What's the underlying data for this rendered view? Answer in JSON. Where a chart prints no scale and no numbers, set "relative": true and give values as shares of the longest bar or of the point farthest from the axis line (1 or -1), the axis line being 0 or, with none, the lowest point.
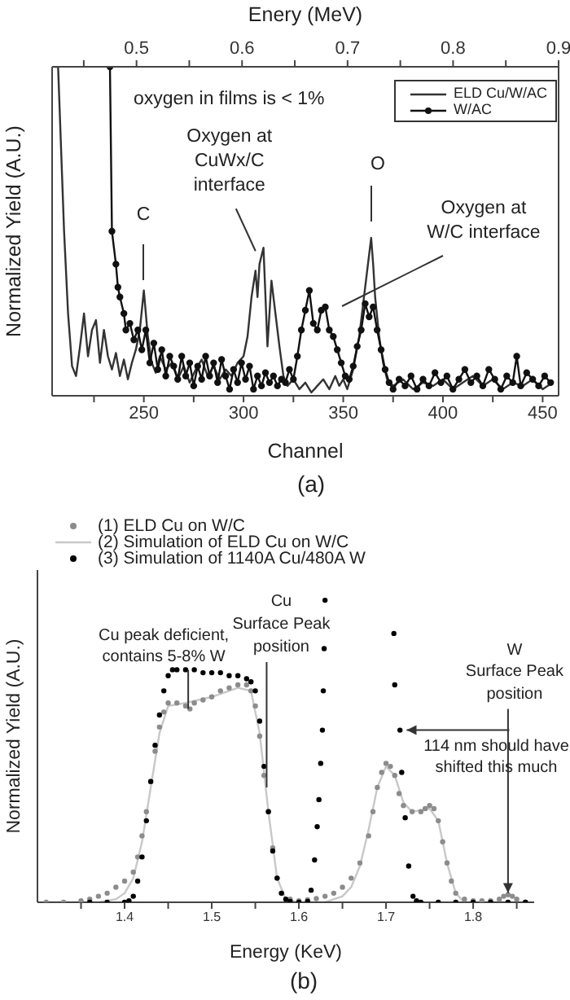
{
  "chart_data": [
    {
      "type": "line",
      "title": "(a)",
      "xlabel": "Channel",
      "ylabel": "Normalized Yield (A.U.)",
      "x2label": "Enery (MeV)",
      "relative": true,
      "xlim": [
        204,
        458
      ],
      "xticks": [
        {
          "value": 225,
          "label": null
        },
        250,
        {
          "value": 275,
          "label": null
        },
        300,
        {
          "value": 325,
          "label": null
        },
        350,
        {
          "value": 375,
          "label": null
        },
        400,
        {
          "value": 425,
          "label": null
        },
        450
      ],
      "x2lim": [
        0.42,
        0.9
      ],
      "x2ticks": [
        {
          "value": 0.45,
          "label": null
        },
        0.5,
        {
          "value": 0.55,
          "label": null
        },
        0.6,
        {
          "value": 0.65,
          "label": null
        },
        0.7,
        {
          "value": 0.75,
          "label": null
        },
        0.8,
        {
          "value": 0.85,
          "label": null
        },
        0.9
      ],
      "legend": "top right",
      "annotations": [
        "oxygen in films is < 1%",
        "C",
        {
          "text": "Oxygen at CuWx/C interface",
          "x": 306,
          "y": 0.44
        },
        "O",
        "Oxygen at W/C interface"
      ],
      "series": [
        {
          "name": "ELD Cu/W/AC",
          "color": "#333333",
          "marker": "none",
          "x": [
            205,
            207,
            210,
            212,
            214,
            216,
            218,
            220,
            222,
            224,
            226,
            228,
            230,
            232,
            234,
            236,
            238,
            240,
            242,
            244,
            246,
            248,
            250,
            252,
            254,
            256,
            258,
            261,
            264,
            267,
            270,
            273,
            276,
            279,
            282,
            285,
            288,
            291,
            294,
            297,
            300,
            302,
            304,
            306,
            307,
            308,
            310,
            311,
            312,
            314,
            316,
            318,
            320,
            322,
            325,
            328,
            331,
            334,
            337,
            340,
            343,
            346,
            348,
            350,
            352,
            355,
            358,
            360,
            362,
            364,
            365,
            366,
            368,
            370,
            372,
            375,
            380,
            385,
            390,
            395,
            400,
            405,
            410,
            415,
            420,
            425,
            430,
            435,
            440,
            445,
            450,
            455
          ],
          "values": [
            1,
            1,
            0.5,
            0.25,
            0.09,
            0.06,
            0.15,
            0.25,
            0.12,
            0.2,
            0.23,
            0.1,
            0.2,
            0.12,
            0.08,
            0.13,
            0.06,
            0.11,
            0.05,
            0.1,
            0.14,
            0.2,
            0.32,
            0.18,
            0.1,
            0.07,
            0.12,
            0.08,
            0.1,
            0.05,
            0.09,
            0.04,
            0.08,
            0.11,
            0.06,
            0.09,
            0.05,
            0.08,
            0.06,
            0.1,
            0.12,
            0.18,
            0.3,
            0.38,
            0.3,
            0.4,
            0.45,
            0.3,
            0.15,
            0.35,
            0.25,
            0.15,
            0.06,
            0.03,
            0.05,
            0.02,
            0.04,
            0.01,
            0.03,
            0.05,
            0.02,
            0.06,
            0.03,
            0.05,
            0.02,
            0.08,
            0.18,
            0.28,
            0.38,
            0.48,
            0.4,
            0.3,
            0.18,
            0.1,
            0.05,
            0.03,
            0.05,
            0.02,
            0.04,
            0.03,
            0.05,
            0.02,
            0.04,
            0.06,
            0.03,
            0.05,
            0.02,
            0.04,
            0.03,
            0.05,
            0.02,
            0.04
          ]
        },
        {
          "name": "W/AC",
          "color": "#111111",
          "marker": "circle",
          "x": [
            233,
            234,
            236,
            237,
            238,
            240,
            241,
            243,
            245,
            247,
            249,
            251,
            253,
            255,
            257,
            259,
            261,
            263,
            265,
            267,
            269,
            271,
            273,
            275,
            277,
            279,
            281,
            283,
            285,
            287,
            289,
            291,
            293,
            295,
            297,
            299,
            301,
            303,
            305,
            307,
            309,
            311,
            313,
            315,
            317,
            319,
            321,
            323,
            325,
            327,
            329,
            331,
            333,
            335,
            337,
            339,
            341,
            343,
            345,
            347,
            349,
            351,
            353,
            355,
            357,
            359,
            361,
            363,
            365,
            367,
            369,
            371,
            373,
            375,
            378,
            381,
            384,
            387,
            390,
            393,
            396,
            399,
            402,
            405,
            408,
            411,
            414,
            417,
            420,
            423,
            426,
            429,
            432,
            435,
            437,
            439,
            442,
            445,
            448,
            451,
            454
          ],
          "values": [
            1,
            0.5,
            0.4,
            0.33,
            0.3,
            0.25,
            0.2,
            0.22,
            0.17,
            0.2,
            0.14,
            0.2,
            0.1,
            0.16,
            0.08,
            0.14,
            0.06,
            0.12,
            0.09,
            0.05,
            0.12,
            0.06,
            0.1,
            0.03,
            0.09,
            0.05,
            0.12,
            0.06,
            0.1,
            0.04,
            0.11,
            0.06,
            0.02,
            0.08,
            0.04,
            0.1,
            0.05,
            0.09,
            0.02,
            0.06,
            0.03,
            0.07,
            0.04,
            0.06,
            0.03,
            0.05,
            0.04,
            0.08,
            0.05,
            0.12,
            0.2,
            0.26,
            0.32,
            0.22,
            0.2,
            0.26,
            0.27,
            0.2,
            0.18,
            0.14,
            0.1,
            0.06,
            0.05,
            0.09,
            0.15,
            0.2,
            0.28,
            0.24,
            0.27,
            0.2,
            0.14,
            0.08,
            0.04,
            0.02,
            0.05,
            0.03,
            0.06,
            0.02,
            0.05,
            0.03,
            0.07,
            0.04,
            0.06,
            0.02,
            0.05,
            0.08,
            0.04,
            0.06,
            0.03,
            0.08,
            0.05,
            0.02,
            0.06,
            0.04,
            0.12,
            0.03,
            0.07,
            0.05,
            0.03,
            0.06,
            0.04
          ]
        }
      ]
    },
    {
      "type": "scatter",
      "title": "(b)",
      "xlabel": "Energy (KeV)",
      "ylabel": "Normalized Yield (A.U.)",
      "relative": true,
      "xlim": [
        1.3,
        1.87
      ],
      "xticks": [
        {
          "value": 1.35,
          "label": null
        },
        1.4,
        {
          "value": 1.45,
          "label": null
        },
        1.5,
        {
          "value": 1.55,
          "label": null
        },
        1.6,
        {
          "value": 1.65,
          "label": null
        },
        1.7,
        {
          "value": 1.75,
          "label": null
        },
        1.8,
        {
          "value": 1.85,
          "label": null
        }
      ],
      "legend": "top left",
      "annotations": [
        {
          "text": "Cu peak deficient, contains 5-8% W",
          "x": 1.473,
          "y": 0.64
        },
        {
          "text": "Cu Surface Peak position",
          "x": 1.563,
          "y": 0.38
        },
        {
          "text": "W Surface Peak position",
          "x": 1.84,
          "y": 0.02
        },
        {
          "text": "114 nm should have shifted this much",
          "x": 1.72,
          "y": 0.57
        }
      ],
      "series": [
        {
          "name": "(1) ELD Cu on W/C",
          "color": "#8c8c8c",
          "marker": "circle",
          "x": [
            1.31,
            1.33,
            1.35,
            1.36,
            1.37,
            1.38,
            1.39,
            1.4,
            1.41,
            1.415,
            1.42,
            1.425,
            1.43,
            1.435,
            1.44,
            1.445,
            1.45,
            1.46,
            1.47,
            1.475,
            1.48,
            1.49,
            1.5,
            1.51,
            1.52,
            1.53,
            1.54,
            1.545,
            1.55,
            1.555,
            1.56,
            1.565,
            1.57,
            1.575,
            1.58,
            1.59,
            1.6,
            1.61,
            1.62,
            1.63,
            1.64,
            1.65,
            1.66,
            1.67,
            1.68,
            1.685,
            1.69,
            1.695,
            1.7,
            1.705,
            1.71,
            1.715,
            1.72,
            1.73,
            1.74,
            1.745,
            1.75,
            1.755,
            1.76,
            1.765,
            1.77,
            1.775,
            1.78,
            1.79,
            1.8,
            1.81,
            1.82,
            1.83,
            1.835,
            1.84,
            1.845,
            1.85,
            1.86
          ],
          "values": [
            0,
            0,
            0.005,
            0.01,
            0.02,
            0.03,
            0.05,
            0.07,
            0.1,
            0.15,
            0.22,
            0.3,
            0.4,
            0.5,
            0.58,
            0.63,
            0.66,
            0.66,
            0.65,
            0.64,
            0.66,
            0.67,
            0.68,
            0.7,
            0.71,
            0.72,
            0.72,
            0.7,
            0.65,
            0.55,
            0.42,
            0.3,
            0.18,
            0.08,
            0.03,
            0.01,
            0.005,
            0.008,
            0.012,
            0.02,
            0.03,
            0.05,
            0.08,
            0.13,
            0.22,
            0.3,
            0.38,
            0.43,
            0.46,
            0.45,
            0.42,
            0.36,
            0.32,
            0.3,
            0.3,
            0.31,
            0.32,
            0.31,
            0.27,
            0.2,
            0.13,
            0.07,
            0.03,
            0.01,
            0.005,
            0.005,
            0.005,
            0.01,
            0.02,
            0.025,
            0.02,
            0.01,
            0
          ]
        },
        {
          "name": "(2) Simulation of ELD Cu on W/C",
          "type": "line",
          "color": "#c8c8c8",
          "marker": "none",
          "x": [
            1.31,
            1.37,
            1.39,
            1.4,
            1.41,
            1.42,
            1.43,
            1.44,
            1.45,
            1.47,
            1.5,
            1.53,
            1.545,
            1.555,
            1.565,
            1.575,
            1.585,
            1.6,
            1.63,
            1.65,
            1.66,
            1.67,
            1.68,
            1.69,
            1.7,
            1.71,
            1.72,
            1.73,
            1.75,
            1.76,
            1.77,
            1.78,
            1.79,
            1.86
          ],
          "values": [
            0,
            0,
            0.01,
            0.03,
            0.08,
            0.2,
            0.38,
            0.56,
            0.65,
            0.66,
            0.68,
            0.71,
            0.7,
            0.56,
            0.3,
            0.08,
            0.01,
            0,
            0,
            0.02,
            0.05,
            0.12,
            0.24,
            0.38,
            0.45,
            0.42,
            0.33,
            0.3,
            0.31,
            0.27,
            0.13,
            0.03,
            0,
            0
          ]
        },
        {
          "name": "(3) Simulation of 1140A Cu/480A W",
          "color": "#000000",
          "marker": "circle",
          "x": [
            1.36,
            1.38,
            1.4,
            1.405,
            1.41,
            1.415,
            1.42,
            1.425,
            1.43,
            1.435,
            1.44,
            1.445,
            1.45,
            1.455,
            1.46,
            1.47,
            1.48,
            1.49,
            1.5,
            1.51,
            1.52,
            1.53,
            1.54,
            1.545,
            1.55,
            1.555,
            1.56,
            1.565,
            1.57,
            1.575,
            1.58,
            1.585,
            1.59,
            1.6,
            1.61,
            1.614,
            1.618,
            1.621,
            1.623,
            1.625,
            1.627,
            1.628,
            1.629,
            1.63,
            1.709,
            1.71,
            1.716,
            1.718,
            1.722,
            1.726,
            1.731,
            1.735,
            1.74,
            1.76,
            1.78,
            1.8,
            1.82,
            1.84,
            1.86
          ],
          "values": [
            0,
            0,
            0,
            0.005,
            0.02,
            0.07,
            0.15,
            0.27,
            0.4,
            0.52,
            0.62,
            0.7,
            0.75,
            0.77,
            0.77,
            0.77,
            0.77,
            0.76,
            0.76,
            0.76,
            0.75,
            0.75,
            0.74,
            0.73,
            0.7,
            0.6,
            0.45,
            0.3,
            0.17,
            0.08,
            0.03,
            0.01,
            0.003,
            0,
            0.003,
            0.04,
            0.14,
            0.25,
            0.34,
            0.46,
            0.57,
            0.7,
            0.84,
            1,
            0.89,
            0.72,
            0.57,
            0.43,
            0.28,
            0.12,
            0.02,
            0.005,
            0,
            0,
            0,
            0,
            0,
            0,
            0
          ]
        }
      ]
    }
  ]
}
